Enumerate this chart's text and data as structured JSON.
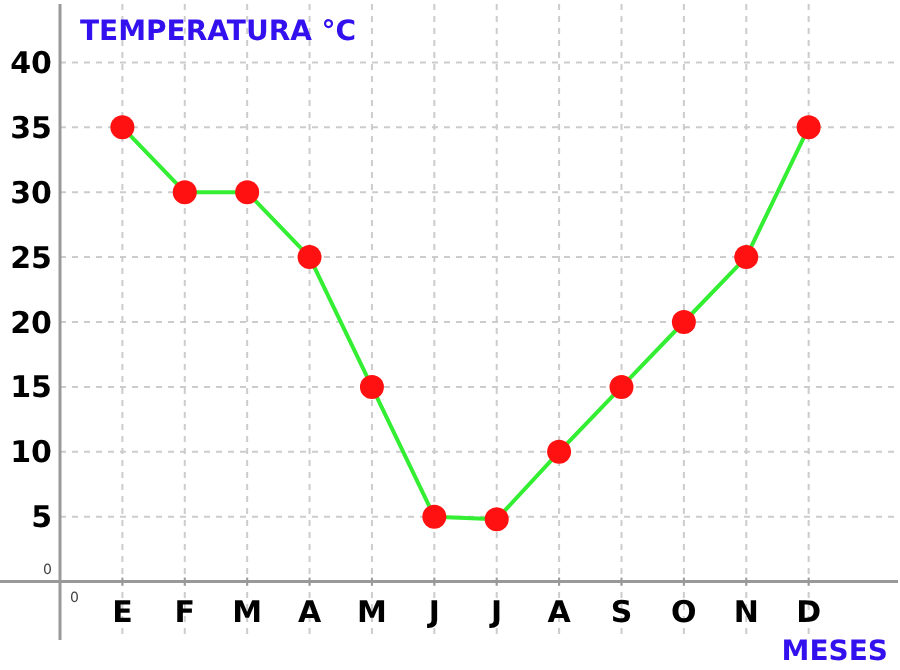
{
  "chart_data": {
    "type": "line",
    "ylabel": "TEMPERATURA °C",
    "xlabel": "MESES",
    "categories": [
      "E",
      "F",
      "M",
      "A",
      "M",
      "J",
      "J",
      "A",
      "S",
      "O",
      "N",
      "D"
    ],
    "series": [
      {
        "color": "#33ee33",
        "values": [
          35,
          30,
          30,
          25,
          15,
          5,
          4.8,
          10,
          15,
          20,
          25,
          35
        ]
      }
    ],
    "marker": "circle",
    "line_style": "solid",
    "ylim": [
      -4.5,
      44.5
    ],
    "yticks": [
      5,
      10,
      15,
      20,
      25,
      30,
      35,
      40
    ],
    "annotations": [
      "0",
      "0"
    ],
    "grid": true
  }
}
